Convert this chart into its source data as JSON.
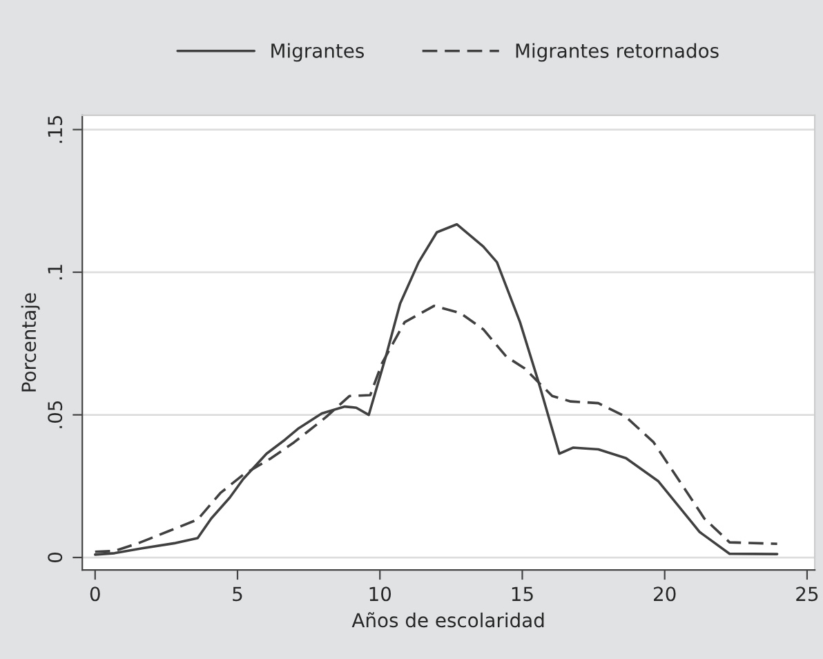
{
  "chart_data": {
    "type": "line",
    "xlabel": "Años de escolaridad",
    "ylabel": "Porcentaje",
    "xlim": [
      -0.45,
      25.27
    ],
    "xticks": [
      0,
      5,
      10,
      15,
      20,
      25
    ],
    "ylim": [
      -0.0044,
      0.155
    ],
    "yticks": [
      0,
      {
        "value": 0.05,
        "label": ".05"
      },
      {
        "value": 0.1,
        "label": ".1"
      },
      {
        "value": 0.15,
        "label": ".15"
      }
    ],
    "grid": "y",
    "legend": "top",
    "series": [
      {
        "name": "Migrantes",
        "color": "#404040",
        "line_style": "solid",
        "x": [
          0,
          0.68,
          1.65,
          2.79,
          3.6,
          4.08,
          4.73,
          5.2,
          6.02,
          6.67,
          7.15,
          7.96,
          8.77,
          9.17,
          9.61,
          10.23,
          10.71,
          11.36,
          12.0,
          12.7,
          13.63,
          14.11,
          14.92,
          15.57,
          16.3,
          16.78,
          17.67,
          18.64,
          19.78,
          21.23,
          22.28,
          23.95
        ],
        "values": [
          0.001,
          0.0015,
          0.0032,
          0.005,
          0.0068,
          0.0137,
          0.021,
          0.0275,
          0.0364,
          0.0413,
          0.0453,
          0.0505,
          0.0529,
          0.0525,
          0.05,
          0.0712,
          0.089,
          0.1035,
          0.114,
          0.1168,
          0.109,
          0.1035,
          0.0825,
          0.0615,
          0.0364,
          0.0385,
          0.0379,
          0.0348,
          0.0267,
          0.0089,
          0.0013,
          0.0012
        ]
      },
      {
        "name": "Migrantes retornados",
        "color": "#404040",
        "line_style": "dashed",
        "x": [
          0,
          0.68,
          1.49,
          2.62,
          3.6,
          4.4,
          5.2,
          6.18,
          6.99,
          8.12,
          8.93,
          9.66,
          10.07,
          10.87,
          11.9,
          12.82,
          13.63,
          14.44,
          15.08,
          16.05,
          16.7,
          17.67,
          18.64,
          19.61,
          20.58,
          21.39,
          22.28,
          23.95
        ],
        "values": [
          0.002,
          0.0023,
          0.0049,
          0.0094,
          0.0133,
          0.0226,
          0.029,
          0.0348,
          0.0404,
          0.0493,
          0.0566,
          0.0569,
          0.068,
          0.0825,
          0.0882,
          0.0857,
          0.08,
          0.0704,
          0.0663,
          0.0566,
          0.0547,
          0.0541,
          0.0493,
          0.0404,
          0.0259,
          0.0137,
          0.0053,
          0.0048
        ]
      }
    ]
  }
}
